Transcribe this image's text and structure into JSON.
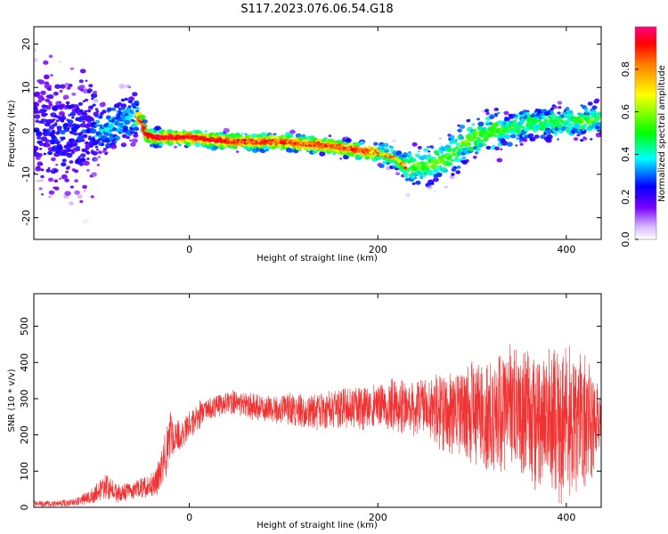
{
  "title": "S117.2023.076.06.54.G18",
  "chart_data": [
    {
      "type": "heatmap",
      "xlabel": "Height of straight line (km)",
      "ylabel": "Frequency (Hz)",
      "xlim": [
        -165,
        437
      ],
      "ylim": [
        -25,
        24
      ],
      "xticks": [
        0,
        200,
        400
      ],
      "xtick_labels": [
        "0",
        "200",
        "400"
      ],
      "yticks": [
        20,
        10,
        0,
        -10,
        -20
      ],
      "ytick_labels": [
        "20",
        "10",
        "0",
        "-10",
        "-20"
      ],
      "ridge": {
        "x": [
          -160,
          -130,
          -100,
          -80,
          -60,
          -52,
          -45,
          -35,
          -20,
          0,
          20,
          50,
          80,
          100,
          120,
          150,
          180,
          200,
          215,
          230,
          250,
          270,
          290,
          310,
          330,
          350,
          370,
          390,
          410,
          437
        ],
        "y": [
          0,
          -1,
          0,
          1,
          3,
          3,
          -1,
          -1.5,
          -1.5,
          -1.5,
          -2,
          -2.5,
          -2.5,
          -2.5,
          -3,
          -3.5,
          -4.5,
          -5,
          -6,
          -8,
          -8,
          -7,
          -3,
          -1,
          0,
          1,
          2,
          2,
          2,
          3
        ]
      },
      "colorbar": {
        "label": "Normalized spectral amplitude",
        "range": [
          0,
          1
        ],
        "ticks": [
          0.0,
          0.2,
          0.4,
          0.6,
          0.8
        ],
        "tick_labels": [
          "0.0",
          "0.2",
          "0.4",
          "0.6",
          "0.8"
        ]
      }
    },
    {
      "type": "line",
      "xlabel": "Height of straight line (km)",
      "ylabel": "SNR (10 * v/v)",
      "xlim": [
        -165,
        437
      ],
      "ylim": [
        0,
        590
      ],
      "xticks": [
        0,
        200,
        400
      ],
      "xtick_labels": [
        "0",
        "200",
        "400"
      ],
      "yticks": [
        0,
        100,
        200,
        300,
        400,
        500
      ],
      "ytick_labels": [
        "0",
        "100",
        "200",
        "300",
        "400",
        "500"
      ],
      "color": "#f03232",
      "envelope": {
        "x": [
          -165,
          -140,
          -120,
          -105,
          -90,
          -75,
          -60,
          -45,
          -35,
          -25,
          -20,
          -10,
          0,
          10,
          20,
          40,
          60,
          80,
          100,
          120,
          150,
          170,
          200,
          230,
          260,
          290,
          320,
          350,
          380,
          400,
          420,
          437
        ],
        "mean": [
          10,
          10,
          15,
          30,
          60,
          40,
          45,
          60,
          70,
          150,
          200,
          200,
          230,
          250,
          270,
          290,
          285,
          275,
          270,
          265,
          270,
          275,
          280,
          280,
          270,
          260,
          265,
          255,
          240,
          230,
          220,
          240
        ],
        "spread": [
          8,
          8,
          10,
          20,
          35,
          25,
          25,
          30,
          40,
          70,
          60,
          40,
          40,
          40,
          30,
          30,
          35,
          35,
          40,
          45,
          50,
          55,
          60,
          70,
          90,
          120,
          150,
          170,
          190,
          200,
          180,
          90
        ]
      }
    }
  ]
}
